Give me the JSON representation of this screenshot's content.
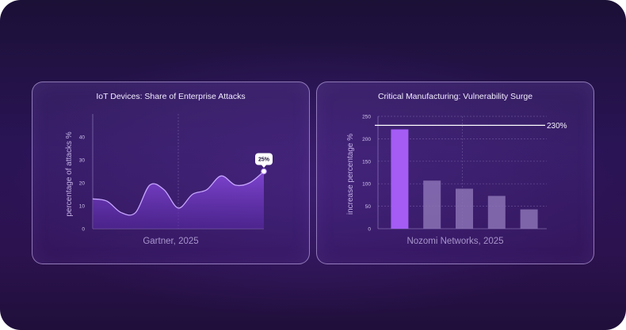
{
  "charts": {
    "left": {
      "title": "IoT Devices: Share of Enterprise Attacks",
      "source": "Gartner, 2025",
      "ylabel": "percentage of attacks %",
      "yticks": [
        "0",
        "10",
        "20",
        "30",
        "40"
      ],
      "callout": "25%"
    },
    "right": {
      "title": "Critical Manufacturing: Vulnerability Surge",
      "source": "Nozomi Networks, 2025",
      "ylabel": "increase percentage %",
      "yticks": [
        "0",
        "50",
        "100",
        "150",
        "200",
        "250"
      ],
      "reference_label": "230%"
    }
  },
  "chart_data": [
    {
      "type": "area",
      "title": "IoT Devices: Share of Enterprise Attacks",
      "xlabel": "",
      "ylabel": "percentage of attacks %",
      "ylim": [
        0,
        50
      ],
      "yticks": [
        0,
        10,
        20,
        30,
        40
      ],
      "x": [
        0,
        1,
        2,
        3,
        4,
        5,
        6,
        7,
        8,
        9,
        10,
        11,
        12
      ],
      "values": [
        13,
        12,
        7,
        7,
        19,
        17,
        9,
        15,
        17,
        23,
        19,
        20,
        25
      ],
      "highlight_last_point": true,
      "annotations": [
        "25%"
      ],
      "grid": "vertical centre gridline",
      "colors": {
        "line": "#b38bff",
        "fill": "#7a3fd0"
      }
    },
    {
      "type": "bar",
      "title": "Critical Manufacturing: Vulnerability Surge",
      "xlabel": "",
      "ylabel": "increase percentage %",
      "ylim": [
        0,
        250
      ],
      "yticks": [
        0,
        50,
        100,
        150,
        200,
        250
      ],
      "categories": [
        "",
        "",
        "",
        "",
        ""
      ],
      "values": [
        221,
        107,
        89,
        73,
        43
      ],
      "reference_line": 230,
      "annotations": [
        "230%"
      ],
      "grid": "dashed horizontal gridlines",
      "colors": {
        "highlight": "#a45cf5",
        "muted": "#8b72b5"
      }
    }
  ]
}
